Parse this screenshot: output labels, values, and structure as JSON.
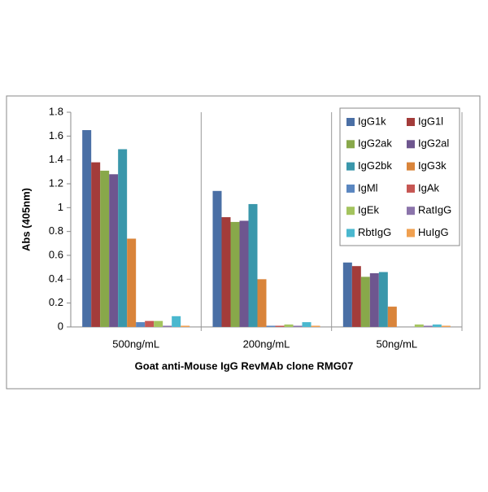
{
  "chart_data": {
    "type": "bar",
    "x_label": "Goat anti-Mouse IgG RevMAb clone RMG07",
    "y_label": "Abs (405nm)",
    "categories": [
      "500ng/mL",
      "200ng/mL",
      "50ng/mL"
    ],
    "series": [
      {
        "name": "IgG1k",
        "color": "#4a6fa5",
        "values": [
          1.65,
          1.14,
          0.54
        ]
      },
      {
        "name": "IgG1l",
        "color": "#a33c3a",
        "values": [
          1.38,
          0.92,
          0.51
        ]
      },
      {
        "name": "IgG2ak",
        "color": "#88a84a",
        "values": [
          1.31,
          0.88,
          0.42
        ]
      },
      {
        "name": "IgG2al",
        "color": "#6e568f",
        "values": [
          1.28,
          0.89,
          0.45
        ]
      },
      {
        "name": "IgG2bk",
        "color": "#3a97ab",
        "values": [
          1.49,
          1.03,
          0.46
        ]
      },
      {
        "name": "IgG3k",
        "color": "#d9843a",
        "values": [
          0.74,
          0.4,
          0.17
        ]
      },
      {
        "name": "IgMl",
        "color": "#5a86c0",
        "values": [
          0.04,
          0.01,
          0.0
        ]
      },
      {
        "name": "IgAk",
        "color": "#c65653",
        "values": [
          0.05,
          0.01,
          0.0
        ]
      },
      {
        "name": "IgEk",
        "color": "#a4c45e",
        "values": [
          0.05,
          0.02,
          0.02
        ]
      },
      {
        "name": "RatIgG",
        "color": "#8b74ab",
        "values": [
          0.01,
          0.01,
          0.01
        ]
      },
      {
        "name": "RbtIgG",
        "color": "#4ab8cf",
        "values": [
          0.09,
          0.04,
          0.02
        ]
      },
      {
        "name": "HuIgG",
        "color": "#f0a050",
        "values": [
          0.01,
          0.01,
          0.01
        ]
      }
    ],
    "ylim": [
      0,
      1.8
    ],
    "yticks": [
      0,
      0.2,
      0.4,
      0.6,
      0.8,
      1,
      1.2,
      1.4,
      1.6,
      1.8
    ],
    "legend": "top-right"
  }
}
